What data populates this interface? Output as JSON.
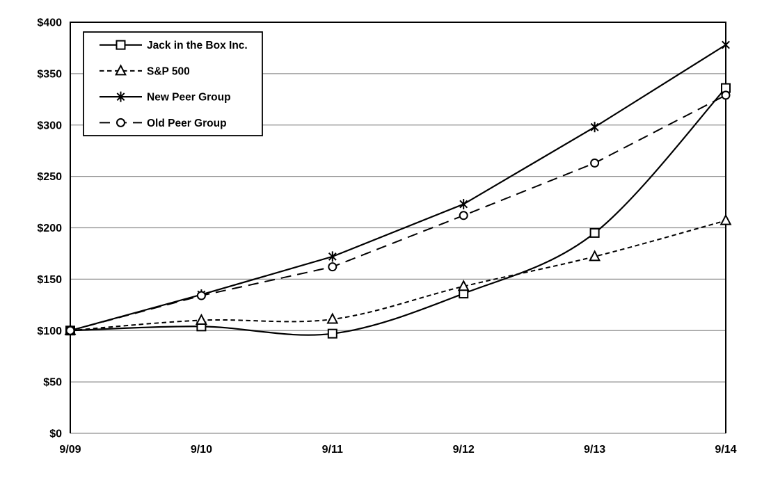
{
  "chart_data": {
    "type": "line",
    "title": "",
    "xlabel": "",
    "ylabel": "",
    "x_labels": [
      "9/09",
      "9/10",
      "9/11",
      "9/12",
      "9/13",
      "9/14"
    ],
    "y_ticks": [
      {
        "value": 0,
        "label": "$0"
      },
      {
        "value": 50,
        "label": "$50"
      },
      {
        "value": 100,
        "label": "$100"
      },
      {
        "value": 150,
        "label": "$150"
      },
      {
        "value": 200,
        "label": "$200"
      },
      {
        "value": 250,
        "label": "$250"
      },
      {
        "value": 300,
        "label": "$300"
      },
      {
        "value": 350,
        "label": "$350"
      },
      {
        "value": 400,
        "label": "$400"
      }
    ],
    "ylim": [
      0,
      400
    ],
    "grid": "horizontal-only",
    "legend_position": "top-left",
    "series": [
      {
        "name": "Jack in the Box Inc.",
        "marker": "square",
        "line_style": "solid",
        "smooth": true,
        "values": [
          100,
          104,
          97,
          136,
          195,
          336
        ]
      },
      {
        "name": "S&P 500",
        "marker": "triangle",
        "line_style": "dash-short",
        "smooth": true,
        "values": [
          100,
          110,
          111,
          143,
          172,
          207
        ]
      },
      {
        "name": "New Peer Group",
        "marker": "asterisk",
        "line_style": "solid",
        "smooth": false,
        "values": [
          100,
          135,
          172,
          223,
          298,
          378
        ]
      },
      {
        "name": "Old Peer Group",
        "marker": "circle",
        "line_style": "dash-long",
        "smooth": false,
        "values": [
          100,
          134,
          162,
          212,
          263,
          329
        ]
      }
    ],
    "colors": {
      "series_line": "#000000",
      "marker_fill": "#ffffff",
      "grid": "#8f8f8f",
      "frame": "#000000",
      "background": "#ffffff",
      "legend_border": "#000000",
      "legend_fill": "#ffffff"
    }
  }
}
